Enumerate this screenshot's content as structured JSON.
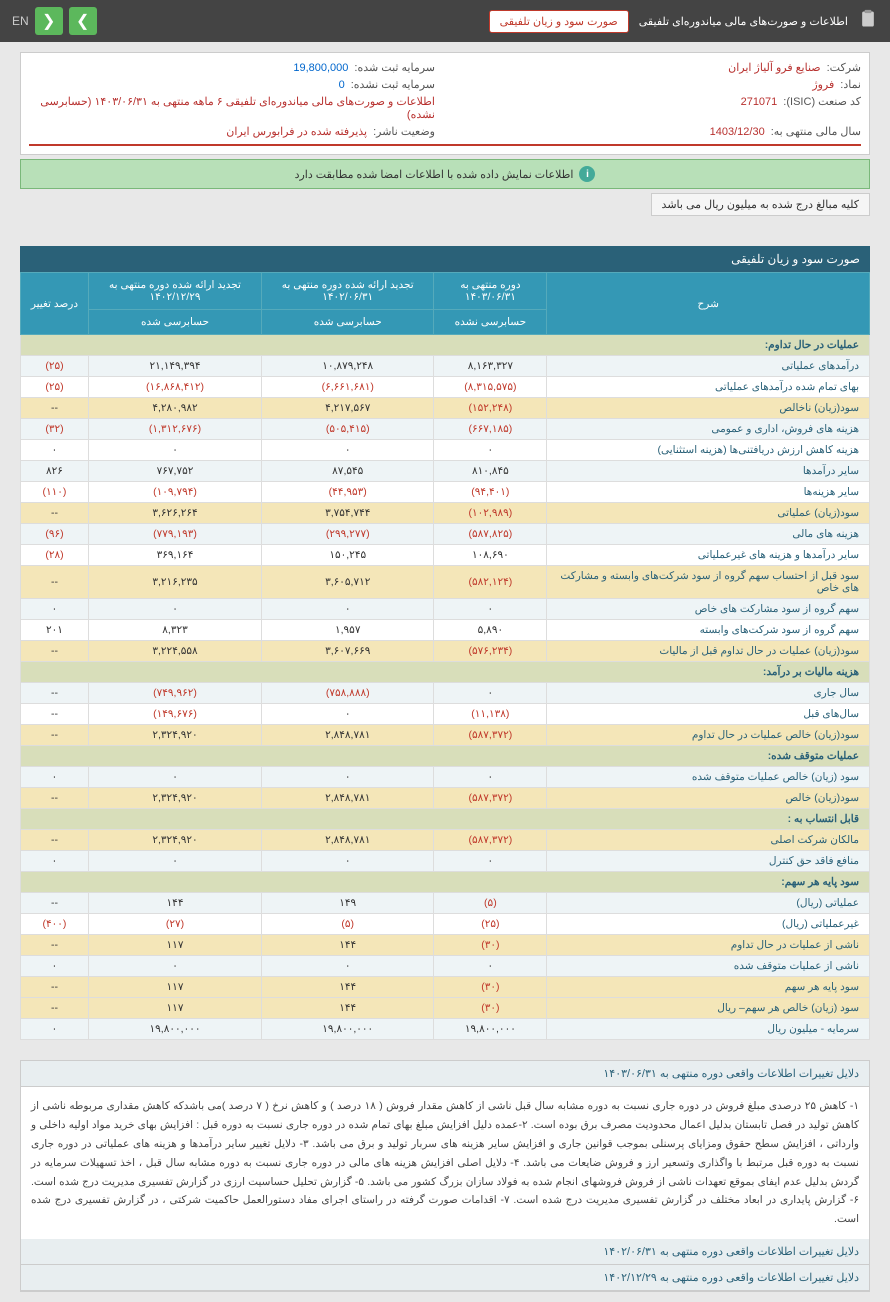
{
  "topbar": {
    "title": "اطلاعات و صورت‌های مالی میاندوره‌ای تلفیقی",
    "status_pill": "صورت سود و زیان تلفیقی",
    "lang": "EN"
  },
  "info": {
    "company_label": "شرکت:",
    "company": "صنایع فرو آلیاژ ایران",
    "symbol_label": "نماد:",
    "symbol": "فروژ",
    "isic_label": "کد صنعت (ISIC):",
    "isic": "271071",
    "year_end_label": "سال مالی منتهی به:",
    "year_end": "1403/12/30",
    "cap_reg_label": "سرمایه ثبت شده:",
    "cap_reg": "19,800,000",
    "cap_unreg_label": "سرمایه ثبت نشده:",
    "cap_unreg": "0",
    "doc_label": "اطلاعات و صورت‌های مالی میاندوره‌ای تلفیقی ۶ ماهه منتهی به ۱۴۰۳/۰۶/۳۱ (حسابرسی نشده)",
    "pub_status_label": "وضعیت ناشر:",
    "pub_status": "پذیرفته شده در فرابورس ایران"
  },
  "confirm": "اطلاعات نمایش داده شده با اطلاعات امضا شده مطابقت دارد",
  "note": "کلیه مبالغ درج شده به میلیون ریال می باشد",
  "section_title": "صورت سود و زیان تلفیقی",
  "headers": {
    "desc": "شرح",
    "c1": "دوره منتهی به ۱۴۰۳/۰۶/۳۱",
    "c1s": "حسابرسی نشده",
    "c2": "تجدید ارائه شده دوره منتهی به ۱۴۰۲/۰۶/۳۱",
    "c2s": "حسابرسی شده",
    "c3": "تجدید ارائه شده دوره منتهی به ۱۴۰۲/۱۲/۲۹",
    "c3s": "حسابرسی شده",
    "c4": "درصد تغییر"
  },
  "rows": [
    {
      "t": "h",
      "d": "عملیات در حال تداوم:"
    },
    {
      "t": "a",
      "d": "درآمدهای عملیاتی",
      "v": [
        "۸,۱۶۳,۳۲۷",
        "۱۰,۸۷۹,۲۴۸",
        "۲۱,۱۴۹,۳۹۴",
        "(۲۵)"
      ],
      "neg": [
        0,
        0,
        0,
        1
      ]
    },
    {
      "t": "",
      "d": "بهای تمام شده درآمدهای عملیاتی",
      "v": [
        "(۸,۳۱۵,۵۷۵)",
        "(۶,۶۶۱,۶۸۱)",
        "(۱۶,۸۶۸,۴۱۲)",
        "(۲۵)"
      ],
      "neg": [
        1,
        1,
        1,
        1
      ]
    },
    {
      "t": "y",
      "d": "سود(زیان) ناخالص",
      "v": [
        "(۱۵۲,۲۴۸)",
        "۴,۲۱۷,۵۶۷",
        "۴,۲۸۰,۹۸۲",
        "--"
      ],
      "neg": [
        1,
        0,
        0,
        0
      ]
    },
    {
      "t": "a",
      "d": "هزینه های فروش، اداری و عمومی",
      "v": [
        "(۶۶۷,۱۸۵)",
        "(۵۰۵,۴۱۵)",
        "(۱,۳۱۲,۶۷۶)",
        "(۳۲)"
      ],
      "neg": [
        1,
        1,
        1,
        1
      ]
    },
    {
      "t": "",
      "d": "هزینه کاهش ارزش دریافتنی‌ها (هزینه استثنایی)",
      "v": [
        "۰",
        "۰",
        "۰",
        "۰"
      ]
    },
    {
      "t": "a",
      "d": "سایر درآمدها",
      "v": [
        "۸۱۰,۸۴۵",
        "۸۷,۵۴۵",
        "۷۶۷,۷۵۲",
        "۸۲۶"
      ]
    },
    {
      "t": "",
      "d": "سایر هزینه‌ها",
      "v": [
        "(۹۴,۴۰۱)",
        "(۴۴,۹۵۳)",
        "(۱۰۹,۷۹۴)",
        "(۱۱۰)"
      ],
      "neg": [
        1,
        1,
        1,
        1
      ]
    },
    {
      "t": "y",
      "d": "سود(زیان) عملیاتی",
      "v": [
        "(۱۰۲,۹۸۹)",
        "۳,۷۵۴,۷۴۴",
        "۳,۶۲۶,۲۶۴",
        "--"
      ],
      "neg": [
        1,
        0,
        0,
        0
      ]
    },
    {
      "t": "a",
      "d": "هزینه های مالی",
      "v": [
        "(۵۸۷,۸۲۵)",
        "(۲۹۹,۲۷۷)",
        "(۷۷۹,۱۹۳)",
        "(۹۶)"
      ],
      "neg": [
        1,
        1,
        1,
        1
      ]
    },
    {
      "t": "",
      "d": "سایر درآمدها و هزینه های غیرعملیاتی",
      "v": [
        "۱۰۸,۶۹۰",
        "۱۵۰,۲۴۵",
        "۳۶۹,۱۶۴",
        "(۲۸)"
      ],
      "neg": [
        0,
        0,
        0,
        1
      ]
    },
    {
      "t": "y",
      "d": "سود قبل از احتساب سهم گروه از سود شرکت‌های وابسته و مشارکت های خاص",
      "v": [
        "(۵۸۲,۱۲۴)",
        "۳,۶۰۵,۷۱۲",
        "۳,۲۱۶,۲۳۵",
        "--"
      ],
      "neg": [
        1,
        0,
        0,
        0
      ]
    },
    {
      "t": "a",
      "d": "سهم گروه از سود مشارکت های خاص",
      "v": [
        "۰",
        "۰",
        "۰",
        "۰"
      ]
    },
    {
      "t": "",
      "d": "سهم گروه از سود شرکت‌های وابسته",
      "v": [
        "۵,۸۹۰",
        "۱,۹۵۷",
        "۸,۳۲۳",
        "۲۰۱"
      ]
    },
    {
      "t": "y",
      "d": "سود(زیان) عملیات در حال تداوم قبل از مالیات",
      "v": [
        "(۵۷۶,۲۳۴)",
        "۳,۶۰۷,۶۶۹",
        "۳,۲۲۴,۵۵۸",
        "--"
      ],
      "neg": [
        1,
        0,
        0,
        0
      ]
    },
    {
      "t": "h",
      "d": "هزینه مالیات بر درآمد:"
    },
    {
      "t": "a",
      "d": "سال جاری",
      "v": [
        "۰",
        "(۷۵۸,۸۸۸)",
        "(۷۴۹,۹۶۲)",
        "--"
      ],
      "neg": [
        0,
        1,
        1,
        0
      ]
    },
    {
      "t": "",
      "d": "سال‌های قبل",
      "v": [
        "(۱۱,۱۳۸)",
        "۰",
        "(۱۴۹,۶۷۶)",
        "--"
      ],
      "neg": [
        1,
        0,
        1,
        0
      ]
    },
    {
      "t": "y",
      "d": "سود(زیان) خالص عملیات در حال تداوم",
      "v": [
        "(۵۸۷,۳۷۲)",
        "۲,۸۴۸,۷۸۱",
        "۲,۳۲۴,۹۲۰",
        "--"
      ],
      "neg": [
        1,
        0,
        0,
        0
      ]
    },
    {
      "t": "h",
      "d": "عملیات متوقف شده:"
    },
    {
      "t": "a",
      "d": "سود (زیان) خالص عملیات متوقف شده",
      "v": [
        "۰",
        "۰",
        "۰",
        "۰"
      ]
    },
    {
      "t": "y",
      "d": "سود(زیان) خالص",
      "v": [
        "(۵۸۷,۳۷۲)",
        "۲,۸۴۸,۷۸۱",
        "۲,۳۲۴,۹۲۰",
        "--"
      ],
      "neg": [
        1,
        0,
        0,
        0
      ]
    },
    {
      "t": "h",
      "d": "قابل انتساب به :"
    },
    {
      "t": "y",
      "d": "مالکان شرکت اصلی",
      "v": [
        "(۵۸۷,۳۷۲)",
        "۲,۸۴۸,۷۸۱",
        "۲,۳۲۴,۹۲۰",
        "--"
      ],
      "neg": [
        1,
        0,
        0,
        0
      ]
    },
    {
      "t": "a",
      "d": "منافع فاقد حق کنترل",
      "v": [
        "۰",
        "۰",
        "۰",
        "۰"
      ]
    },
    {
      "t": "h",
      "d": "سود پایه هر سهم:"
    },
    {
      "t": "a",
      "d": "عملیاتی (ریال)",
      "v": [
        "(۵)",
        "۱۴۹",
        "۱۴۴",
        "--"
      ],
      "neg": [
        1,
        0,
        0,
        0
      ]
    },
    {
      "t": "",
      "d": "غیرعملیاتی (ریال)",
      "v": [
        "(۲۵)",
        "(۵)",
        "(۲۷)",
        "(۴۰۰)"
      ],
      "neg": [
        1,
        1,
        1,
        1
      ]
    },
    {
      "t": "y",
      "d": "ناشی از عملیات در حال تداوم",
      "v": [
        "(۳۰)",
        "۱۴۴",
        "۱۱۷",
        "--"
      ],
      "neg": [
        1,
        0,
        0,
        0
      ]
    },
    {
      "t": "a",
      "d": "ناشی از عملیات متوقف شده",
      "v": [
        "۰",
        "۰",
        "۰",
        "۰"
      ]
    },
    {
      "t": "y",
      "d": "سود پایه هر سهم",
      "v": [
        "(۳۰)",
        "۱۴۴",
        "۱۱۷",
        "--"
      ],
      "neg": [
        1,
        0,
        0,
        0
      ]
    },
    {
      "t": "y",
      "d": "سود (زیان) خالص هر سهم– ریال",
      "v": [
        "(۳۰)",
        "۱۴۴",
        "۱۱۷",
        "--"
      ],
      "neg": [
        1,
        0,
        0,
        0
      ]
    },
    {
      "t": "a",
      "d": "سرمایه - میلیون ریال",
      "v": [
        "۱۹,۸۰۰,۰۰۰",
        "۱۹,۸۰۰,۰۰۰",
        "۱۹,۸۰۰,۰۰۰",
        "۰"
      ]
    }
  ],
  "footer": {
    "t1": "دلایل تغییرات اطلاعات واقعی دوره منتهی به ۱۴۰۳/۰۶/۳۱",
    "body": "۱- کاهش ۲۵ درصدی مبلغ فروش در دوره جاری نسبت به دوره مشابه سال قبل ناشی از کاهش مقدار فروش ( ۱۸ درصد ) و کاهش نرخ ( ۷ درصد )می باشدکه کاهش مقداری مربوطه ناشی از کاهش تولید در فصل تابستان بدلیل اعمال محدودیت مصرف برق بوده است. ۲-عمده دلیل افزایش مبلغ بهای تمام شده در دوره جاری نسبت به دوره قبل : افزایش بهای خرید مواد اولیه داخلی و وارداتی ، افزایش سطح حقوق ومزایای پرسنلی بموجب قوانین جاری و افزایش سایر هزینه های سربار تولید و برق می باشد. ۳- دلایل تغییر سایر درآمدها و هزینه های عملیاتی در دوره جاری نسبت به دوره قبل مرتبط با واگذاری وتسعیر ارز و فروش ضایعات می باشد. ۴- دلایل اصلی افزایش هزینه های مالی در دوره جاری نسبت به دوره مشابه سال قبل ، اخذ تسهیلات سرمایه در گردش بدلیل عدم ایفای بموقع تعهدات ناشی از فروش فروشهای انجام شده به فولاد سازان بزرگ کشور می باشد. ۵- گزارش تحلیل حساسیت ارزی در گزارش تفسیری مدیریت درج شده است. ۶- گزارش پایداری در ابعاد مختلف در گزارش تفسیری مدیریت درج شده است. ۷- اقدامات صورت گرفته در راستای اجرای مفاد دستورالعمل حاکمیت شرکتی ، در گزارش تفسیری درج شده است.",
    "t2": "دلایل تغییرات اطلاعات واقعی دوره منتهی به ۱۴۰۲/۰۶/۳۱",
    "t3": "دلایل تغییرات اطلاعات واقعی دوره منتهی به ۱۴۰۲/۱۲/۲۹"
  }
}
